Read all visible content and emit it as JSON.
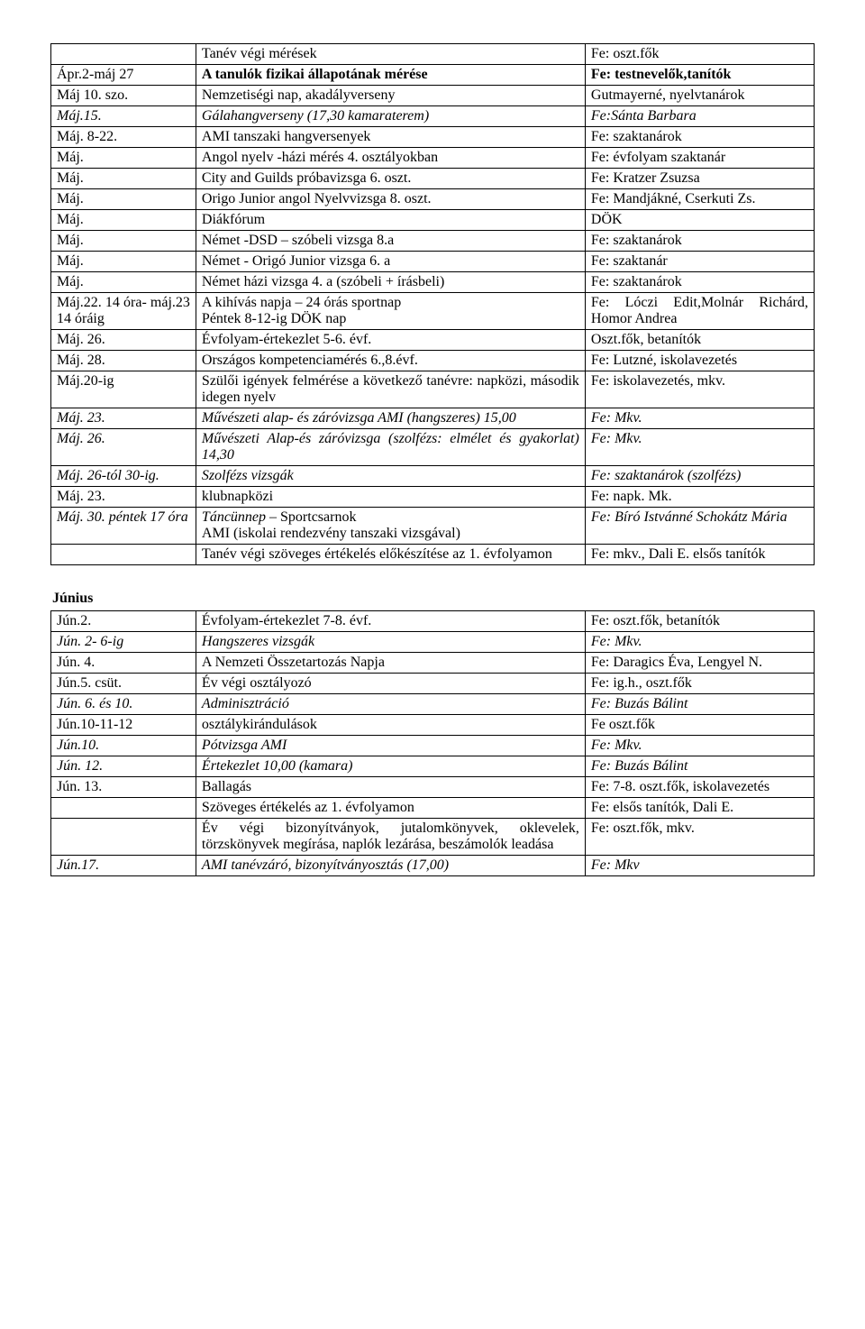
{
  "colors": {
    "text": "#000000",
    "bg": "#ffffff",
    "border": "#000000"
  },
  "typography": {
    "family": "Times New Roman",
    "size_pt": 12
  },
  "table1": {
    "col_widths_pct": [
      19,
      51,
      30
    ],
    "rows": [
      {
        "c1": "",
        "c2": "Tanév végi mérések",
        "c3": "Fe: oszt.fők"
      },
      {
        "c1": "Ápr.2-máj 27",
        "c2": "A tanulók fizikai állapotának mérése",
        "c3": "Fe: testnevelők,tanítók",
        "c2_bold": true,
        "c3_bold": true
      },
      {
        "c1": "Máj 10. szo.",
        "c2": " Nemzetiségi nap, akadályverseny",
        "c3": "Gutmayerné, nyelvtanárok",
        "c1_mixed": true
      },
      {
        "c1": "Máj.15.",
        "c2": "Gálahangverseny (17,30 kamaraterem)",
        "c3": "Fe:Sánta Barbara",
        "italic": true
      },
      {
        "c1": "Máj. 8-22.",
        "c2": "AMI tanszaki hangversenyek",
        "c3": "Fe: szaktanárok"
      },
      {
        "c1": "Máj.",
        "c2": "Angol nyelv -házi mérés 4. osztályokban",
        "c3": "Fe: évfolyam szaktanár"
      },
      {
        "c1": "Máj.",
        "c2": "City and Guilds próbavizsga 6. oszt.",
        "c3": "Fe: Kratzer Zsuzsa"
      },
      {
        "c1": "Máj.",
        "c2": "Origo Junior angol Nyelvvizsga 8. oszt.",
        "c3": "Fe: Mandjákné, Cserkuti Zs."
      },
      {
        "c1": "Máj.",
        "c2": "Diákfórum",
        "c3": "DÖK"
      },
      {
        "c1": "Máj.",
        "c2": "Német -DSD – szóbeli vizsga 8.a",
        "c3": "Fe: szaktanárok"
      },
      {
        "c1": "Máj.",
        "c2": "Német - Origó Junior vizsga  6. a",
        "c3": "Fe: szaktanár"
      },
      {
        "c1": "Máj.",
        "c2": "Német házi vizsga 4. a  (szóbeli + írásbeli)",
        "c3": "Fe: szaktanárok"
      },
      {
        "c1": "Máj.22. 14 óra- máj.23 14 óráig",
        "c2": "A kihívás napja – 24 órás sportnap\nPéntek 8-12-ig DÖK nap",
        "c3": "Fe: Lóczi Edit,Molnár Richárd, Homor Andrea",
        "c1_justify": true,
        "c3_justify": true
      },
      {
        "c1": "Máj. 26.",
        "c2": "Évfolyam-értekezlet 5-6. évf.",
        "c3": "Oszt.fők, betanítók"
      },
      {
        "c1": "Máj. 28.",
        "c2": "Országos kompetenciamérés 6.,8.évf.",
        "c3": "Fe: Lutzné, iskolavezetés"
      },
      {
        "c1": "Máj.20-ig",
        "c2": "Szülői igények felmérése a következő tanévre: napközi, második idegen nyelv",
        "c3": "Fe: iskolavezetés, mkv.",
        "c2_justify": true
      },
      {
        "c1": "Máj. 23.",
        "c2": "Művészeti alap- és záróvizsga AMI (hangszeres) 15,00",
        "c3": "Fe: Mkv.",
        "italic": true,
        "c2_justify": true
      },
      {
        "c1": "Máj. 26.",
        "c2": "Művészeti Alap-és záróvizsga (szolfézs: elmélet és gyakorlat) 14,30",
        "c3": "Fe: Mkv.",
        "italic": true,
        "c2_justify": true
      },
      {
        "c1": "Máj. 26-tól 30-ig.",
        "c2": "Szolfézs vizsgák",
        "c3": "Fe: szaktanárok (szolfézs)",
        "italic": true,
        "c1_justify": true
      },
      {
        "c1": "Máj. 23.",
        "c2": "klubnapközi",
        "c3": "Fe: napk. Mk."
      },
      {
        "c1": " Máj. 30. péntek\n17 óra",
        "c2": "Táncünnep – Sportcsarnok\nAMI  (iskolai rendezvény tanszaki vizsgával)",
        "c3": "Fe: Bíró Istvánné Schokátz Mária",
        "c1_italic": true,
        "c2_mixed_italic": true,
        "c3_italic": true,
        "c3_justify": true
      },
      {
        "c1": "",
        "c2": "Tanév végi szöveges értékelés előkészítése az 1. évfolyamon",
        "c3": "Fe: mkv., Dali E. elsős tanítók",
        "c2_justify": true,
        "c3_justify": true
      }
    ]
  },
  "heading2": "Június",
  "table2": {
    "col_widths_pct": [
      19,
      51,
      30
    ],
    "rows": [
      {
        "c1": "Jún.2.",
        "c2": "Évfolyam-értekezlet 7-8. évf.",
        "c3": "Fe: oszt.fők, betanítók"
      },
      {
        "c1": "Jún. 2- 6-ig",
        "c2": "Hangszeres vizsgák",
        "c3": "Fe: Mkv.",
        "italic": true,
        "c2_part_italic": "Hangszeres viz",
        "c2_part_normal": "sgák"
      },
      {
        "c1": "Jún. 4.",
        "c2": "A Nemzeti Összetartozás Napja",
        "c3": "Fe: Daragics Éva, Lengyel N."
      },
      {
        "c1": "Jún.5. csüt.",
        "c2": "Év végi osztályozó",
        "c3": "Fe: ig.h., oszt.fők"
      },
      {
        "c1": "Jún. 6. és 10.",
        "c2": "Adminisztráció",
        "c3": "Fe: Buzás Bálint",
        "italic": true
      },
      {
        "c1": "Jún.10-11-12",
        "c2": "osztálykirándulások",
        "c3": "Fe oszt.fők"
      },
      {
        "c1": "Jún.10.",
        "c2": "Pótvizsga AMI",
        "c3": "Fe: Mkv.",
        "italic": true
      },
      {
        "c1": "Jún. 12.",
        "c2": "Értekezlet 10,00 (kamara)",
        "c3": "Fe: Buzás Bálint",
        "italic": true
      },
      {
        "c1": "Jún. 13.",
        "c2": "Ballagás",
        "c3": "Fe: 7-8. oszt.fők, iskolavezetés",
        "c3_justify": true
      },
      {
        "c1": "",
        "c2": "Szöveges értékelés az 1. évfolyamon",
        "c3": "Fe: elsős tanítók, Dali E."
      },
      {
        "c1": "",
        "c2": "Év végi bizonyítványok, jutalomkönyvek, oklevelek, törzskönyvek megírása, naplók lezárása, beszámolók leadása",
        "c3": "Fe: oszt.fők, mkv.",
        "c2_justify": true
      },
      {
        "c1": "Jún.17.",
        "c2": "AMI tanévzáró, bizonyítványosztás (17,00)",
        "c3": "Fe: Mkv",
        "italic": true,
        "c2_justify": true
      }
    ]
  }
}
